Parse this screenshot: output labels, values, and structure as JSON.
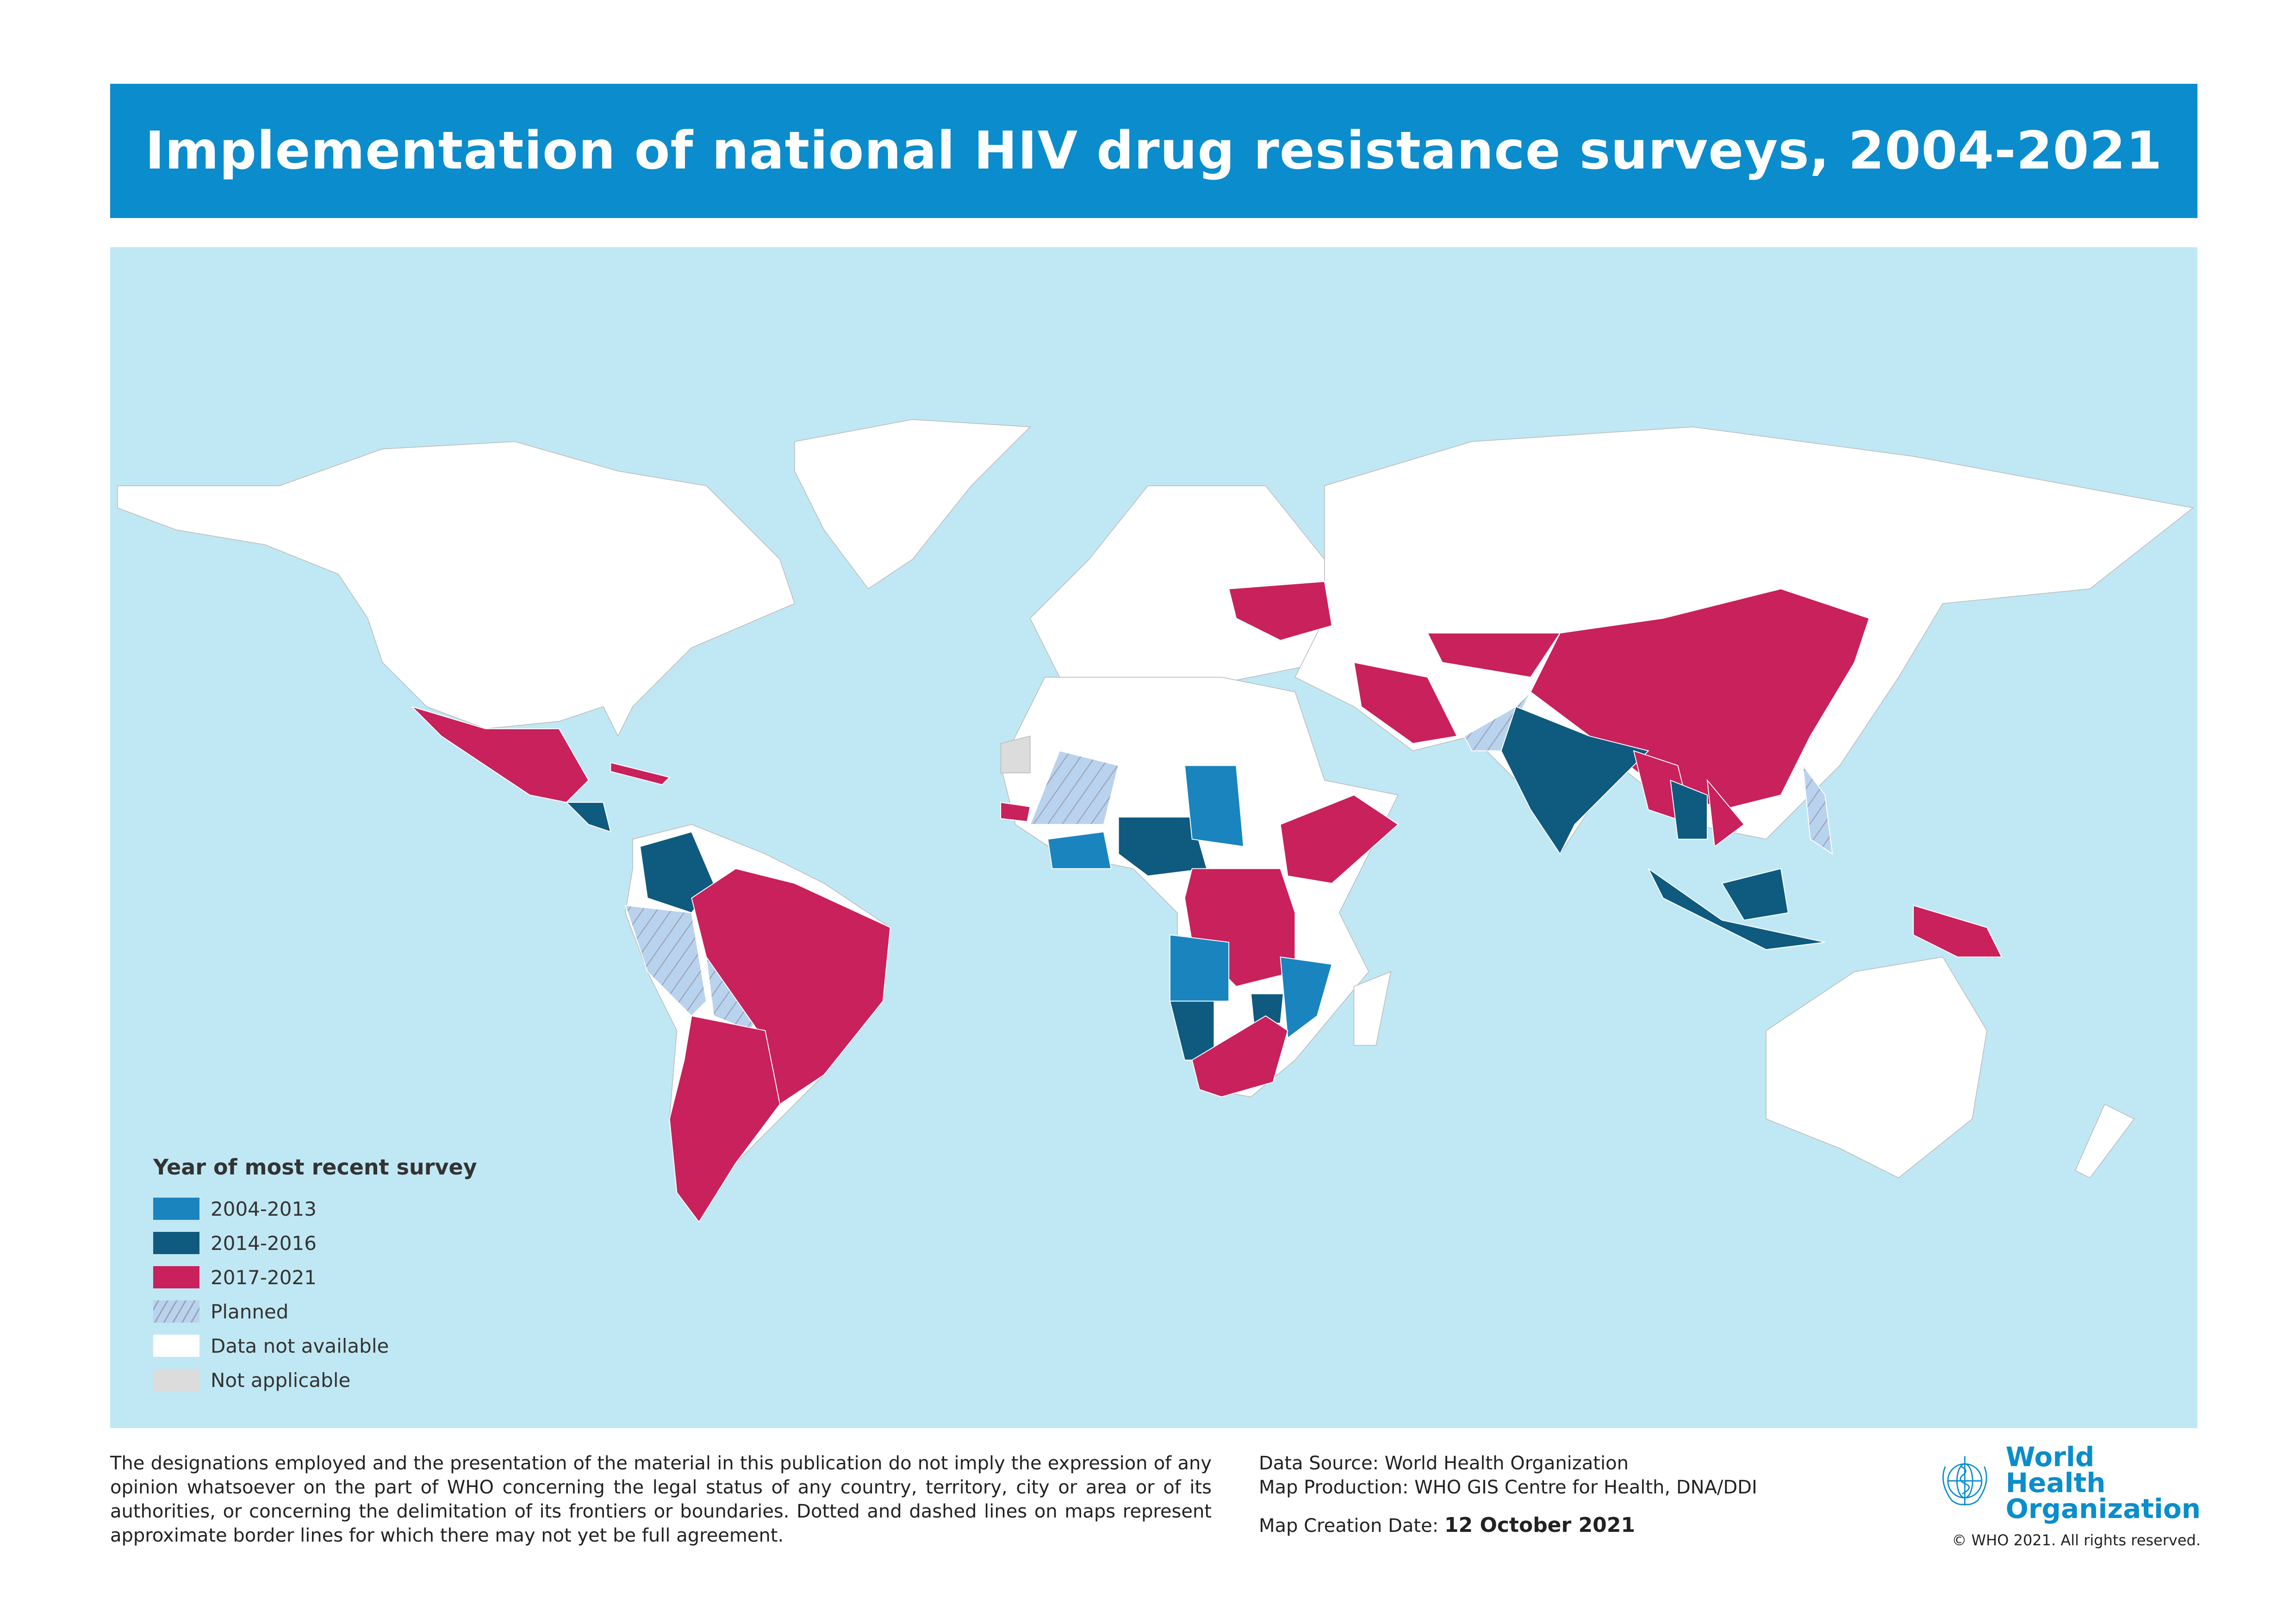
{
  "title": "Implementation of national HIV drug resistance surveys, 2004-2021",
  "colors": {
    "title_bar": "#0b8ccc",
    "ocean": "#c0e8f4",
    "land_no_data": "#ffffff",
    "not_applicable": "#dcdcdc",
    "period_2004_2013": "#1a84bf",
    "period_2014_2016": "#0f5a7f",
    "period_2017_2021": "#c8215b",
    "planned": "#b9d3ee"
  },
  "legend": {
    "title": "Year of most recent survey",
    "items": [
      {
        "label": "2004-2013",
        "color": "#1a84bf"
      },
      {
        "label": "2014-2016",
        "color": "#0f5a7f"
      },
      {
        "label": "2017-2021",
        "color": "#c8215b"
      },
      {
        "label": "Planned",
        "color": "#b9d3ee",
        "pattern": "hatched"
      },
      {
        "label": "Data not available",
        "color": "#ffffff"
      },
      {
        "label": "Not applicable",
        "color": "#dcdcdc"
      }
    ]
  },
  "footer": {
    "disclaimer": "The designations employed and the presentation of the material in this publication do not imply the expression of any opinion whatsoever on the part of WHO concerning the legal status of any country, territory, city or area or of its authorities, or concerning the delimitation of its frontiers or boundaries. Dotted and dashed lines on maps represent approximate border lines for which there may not yet be full agreement.",
    "data_source": "Data Source: World Health Organization",
    "map_production": "Map Production: WHO GIS Centre for Health, DNA/DDI",
    "creation_date_label": "Map Creation Date:",
    "creation_date": "12 October 2021",
    "org_name_line1": "World Health",
    "org_name_line2": "Organization",
    "copyright": "© WHO 2021. All rights reserved."
  }
}
